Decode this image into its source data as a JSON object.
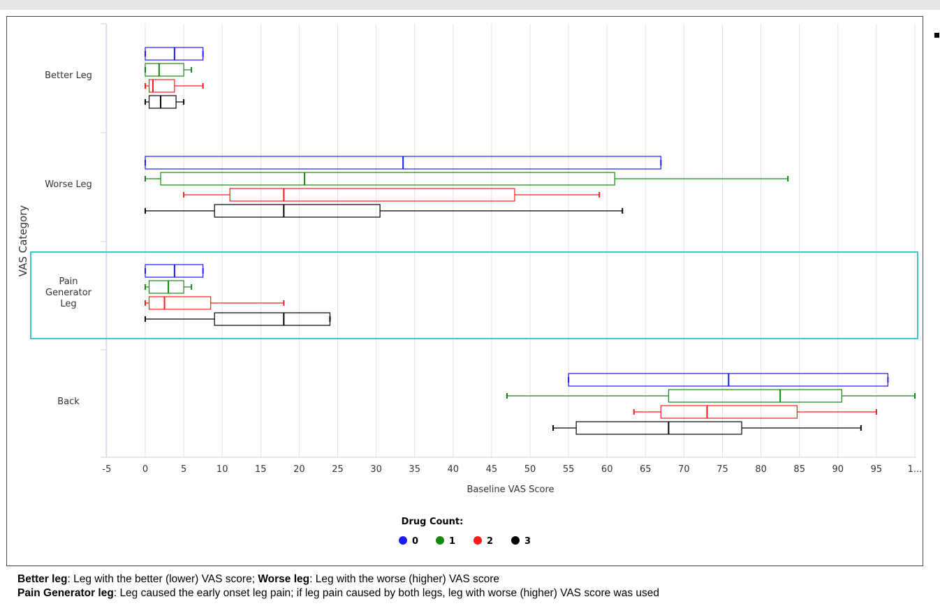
{
  "chart_data": {
    "type": "boxplot",
    "orientation": "horizontal",
    "xlabel": "Baseline VAS Score",
    "ylabel": "VAS Category",
    "xlim": [
      -5,
      100
    ],
    "x_ticks": [
      "-5",
      "0",
      "5",
      "10",
      "15",
      "20",
      "25",
      "30",
      "35",
      "40",
      "45",
      "50",
      "55",
      "60",
      "65",
      "70",
      "75",
      "80",
      "85",
      "90",
      "95",
      "1..."
    ],
    "grid": "vertical",
    "legend": {
      "title": "Drug Count:",
      "position": "bottom-center",
      "items": [
        {
          "label": "0",
          "color": "#1a1aff"
        },
        {
          "label": "1",
          "color": "#118811"
        },
        {
          "label": "2",
          "color": "#ff1a1a"
        },
        {
          "label": "3",
          "color": "#000000"
        }
      ]
    },
    "highlight_color": "#3cc8c8",
    "highlighted_category": "Pain Generator Leg",
    "categories": [
      {
        "lines": [
          "Better Leg"
        ],
        "boxes": [
          {
            "group": "0",
            "min": 0,
            "q1": 0,
            "median": 3.8,
            "q3": 7.5,
            "max": 7.5
          },
          {
            "group": "1",
            "min": 0,
            "q1": 0,
            "median": 1.8,
            "q3": 5,
            "max": 6
          },
          {
            "group": "2",
            "min": 0,
            "q1": 0.5,
            "median": 1,
            "q3": 3.8,
            "max": 7.5
          },
          {
            "group": "3",
            "min": 0,
            "q1": 0.5,
            "median": 2,
            "q3": 4,
            "max": 5
          }
        ]
      },
      {
        "lines": [
          "Worse Leg"
        ],
        "boxes": [
          {
            "group": "0",
            "min": 0,
            "q1": 0,
            "median": 33.5,
            "q3": 67,
            "max": 67
          },
          {
            "group": "1",
            "min": 0,
            "q1": 2,
            "median": 20.7,
            "q3": 61,
            "max": 83.5
          },
          {
            "group": "2",
            "min": 5,
            "q1": 11,
            "median": 18,
            "q3": 48,
            "max": 59
          },
          {
            "group": "3",
            "min": 0,
            "q1": 9,
            "median": 18,
            "q3": 30.5,
            "max": 62
          }
        ]
      },
      {
        "lines": [
          "Pain",
          "Generator",
          "Leg"
        ],
        "boxes": [
          {
            "group": "0",
            "min": 0,
            "q1": 0,
            "median": 3.8,
            "q3": 7.5,
            "max": 7.5
          },
          {
            "group": "1",
            "min": 0,
            "q1": 0.5,
            "median": 3,
            "q3": 5,
            "max": 6
          },
          {
            "group": "2",
            "min": 0,
            "q1": 0.5,
            "median": 2.5,
            "q3": 8.5,
            "max": 18
          },
          {
            "group": "3",
            "min": 0,
            "q1": 9,
            "median": 18,
            "q3": 24,
            "max": 24
          }
        ]
      },
      {
        "lines": [
          "Back"
        ],
        "boxes": [
          {
            "group": "0",
            "min": 55,
            "q1": 55,
            "median": 75.8,
            "q3": 96.5,
            "max": 96.5
          },
          {
            "group": "1",
            "min": 47,
            "q1": 68,
            "median": 82.5,
            "q3": 90.5,
            "max": 100
          },
          {
            "group": "2",
            "min": 63.5,
            "q1": 67,
            "median": 73,
            "q3": 84.7,
            "max": 95
          },
          {
            "group": "3",
            "min": 53,
            "q1": 56,
            "median": 68,
            "q3": 77.5,
            "max": 93
          }
        ]
      }
    ]
  },
  "footnote": {
    "line1_bold_a": "Better leg",
    "line1_text_a": ": Leg with the better (lower) VAS score; ",
    "line1_bold_b": "Worse leg",
    "line1_text_b": ": Leg with the worse (higher) VAS score",
    "line2_bold": "Pain Generator leg",
    "line2_text": ": Leg caused the early onset leg pain; if leg pain caused by both legs, leg with worse (higher) VAS score was used"
  }
}
